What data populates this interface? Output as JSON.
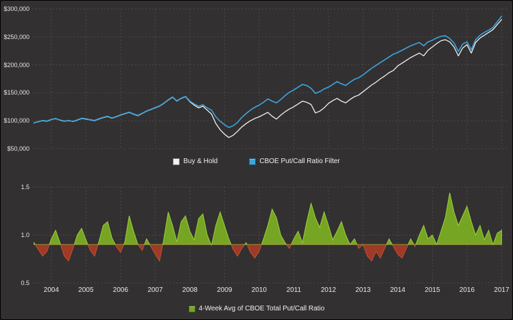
{
  "meta": {
    "background_color": "#323031",
    "grid_color": "#4d4a48",
    "text_color": "#e4e4e4"
  },
  "chart_data": [
    {
      "type": "line",
      "panel": "equity-curves",
      "title": "",
      "x_start": 2003.5,
      "x_step": 0.125,
      "xlim": [
        2003.45,
        2017.15
      ],
      "ylim": [
        50000,
        300000
      ],
      "y_ticks": [
        50000,
        100000,
        150000,
        200000,
        250000,
        300000
      ],
      "y_tick_labels": [
        "$50,000",
        "$100,000",
        "$150,000",
        "$200,000",
        "$250,000",
        "$300,000"
      ],
      "x_ticks": [
        2004,
        2005,
        2006,
        2007,
        2008,
        2009,
        2010,
        2011,
        2012,
        2013,
        2014,
        2015,
        2016,
        2017
      ],
      "grid": true,
      "legend_position": "bottom",
      "series": [
        {
          "name": "Buy & Hold",
          "color": "#f2f2f2",
          "values": [
            96000,
            98500,
            100000,
            99000,
            102000,
            104000,
            101000,
            99000,
            100500,
            98500,
            101000,
            104000,
            103000,
            101500,
            100000,
            103000,
            105500,
            107500,
            104500,
            107000,
            110000,
            112500,
            115000,
            111500,
            109000,
            113000,
            117000,
            120000,
            123000,
            126000,
            131000,
            137000,
            142000,
            135000,
            140000,
            143000,
            134000,
            128000,
            123000,
            126000,
            119000,
            112000,
            95000,
            84000,
            76000,
            70000,
            74000,
            81000,
            89000,
            95000,
            100000,
            104000,
            107000,
            111000,
            115000,
            108000,
            103000,
            110000,
            116000,
            121000,
            125000,
            130000,
            135000,
            133000,
            129000,
            114000,
            117000,
            123000,
            131000,
            136000,
            140000,
            135000,
            132000,
            138000,
            143000,
            146000,
            152000,
            158000,
            164000,
            169000,
            175000,
            180000,
            186000,
            190000,
            198000,
            203000,
            208000,
            213000,
            217000,
            221000,
            216000,
            226000,
            232000,
            238000,
            243000,
            245000,
            241000,
            232000,
            216000,
            230000,
            236000,
            221000,
            240000,
            248000,
            253000,
            258000,
            263000,
            272000,
            281000
          ]
        },
        {
          "name": "CBOE Put/Call Ratio Filter",
          "color": "#3da5de",
          "values": [
            96500,
            98000,
            100500,
            99500,
            102500,
            103500,
            101500,
            99500,
            100000,
            99000,
            101500,
            104500,
            103500,
            102000,
            100500,
            103500,
            106000,
            108000,
            105000,
            107500,
            110500,
            113000,
            115500,
            112000,
            109500,
            113500,
            117500,
            120500,
            123500,
            126500,
            131500,
            137500,
            142500,
            135500,
            140500,
            143500,
            135000,
            130000,
            126000,
            128500,
            123000,
            119000,
            107000,
            99000,
            93000,
            88000,
            91000,
            97000,
            106000,
            113000,
            119000,
            124000,
            128000,
            133000,
            139000,
            135000,
            132000,
            138000,
            145000,
            151000,
            155000,
            160000,
            165000,
            163000,
            158000,
            149000,
            152000,
            157000,
            160000,
            165000,
            170000,
            166000,
            163000,
            169000,
            174000,
            177000,
            182000,
            188000,
            194000,
            199000,
            204000,
            209000,
            214000,
            219000,
            222000,
            226000,
            230000,
            234000,
            237000,
            240000,
            234000,
            241000,
            244000,
            248000,
            251000,
            252000,
            247000,
            239000,
            224000,
            237000,
            241000,
            227000,
            245000,
            253000,
            258000,
            262000,
            267000,
            277000,
            287000
          ]
        }
      ]
    },
    {
      "type": "area",
      "panel": "put-call-ratio",
      "name": "4-Week Avg of CBOE Total Put/Call Ratio",
      "x_start": 2003.5,
      "x_step": 0.125,
      "xlim": [
        2003.45,
        2017.15
      ],
      "ylim": [
        0.5,
        1.5
      ],
      "y_ticks": [
        0.5,
        1.0,
        1.5
      ],
      "y_tick_labels": [
        "0.5",
        "1.0",
        "1.5"
      ],
      "x_ticks": [
        2004,
        2005,
        2006,
        2007,
        2008,
        2009,
        2010,
        2011,
        2012,
        2013,
        2014,
        2015,
        2016,
        2017
      ],
      "x_tick_labels": [
        "2004",
        "2005",
        "2006",
        "2007",
        "2008",
        "2009",
        "2010",
        "2011",
        "2012",
        "2013",
        "2014",
        "2015",
        "2016",
        "2017"
      ],
      "baseline": 0.9,
      "color_above": "#76a524",
      "stroke_above": "#9ccf3c",
      "color_below": "#9e3a26",
      "stroke_below": "#c25138",
      "grid": true,
      "values": [
        0.92,
        0.85,
        0.78,
        0.83,
        0.96,
        1.05,
        0.92,
        0.78,
        0.73,
        0.86,
        1.0,
        1.07,
        0.95,
        0.84,
        0.78,
        0.93,
        1.1,
        1.14,
        0.97,
        0.88,
        0.82,
        0.93,
        1.2,
        1.04,
        0.9,
        0.84,
        0.96,
        0.88,
        0.8,
        0.73,
        0.96,
        1.24,
        1.1,
        0.93,
        1.14,
        1.2,
        1.04,
        0.95,
        1.17,
        1.22,
        1.0,
        0.89,
        1.1,
        1.24,
        1.1,
        0.96,
        0.85,
        0.78,
        0.86,
        0.92,
        0.82,
        0.76,
        0.83,
        0.96,
        1.1,
        1.27,
        1.18,
        1.0,
        0.92,
        0.86,
        0.96,
        1.04,
        0.92,
        1.14,
        1.33,
        1.18,
        1.08,
        1.24,
        1.1,
        0.95,
        1.04,
        1.14,
        1.0,
        0.9,
        0.96,
        0.86,
        0.9,
        0.78,
        0.73,
        0.83,
        0.76,
        0.86,
        0.96,
        0.88,
        0.8,
        0.76,
        0.86,
        0.96,
        0.88,
        1.0,
        1.1,
        0.96,
        1.0,
        0.9,
        1.04,
        1.18,
        1.44,
        1.24,
        1.1,
        1.2,
        1.3,
        1.14,
        1.0,
        1.1,
        0.95,
        1.05,
        0.9,
        1.02,
        1.05
      ]
    }
  ]
}
